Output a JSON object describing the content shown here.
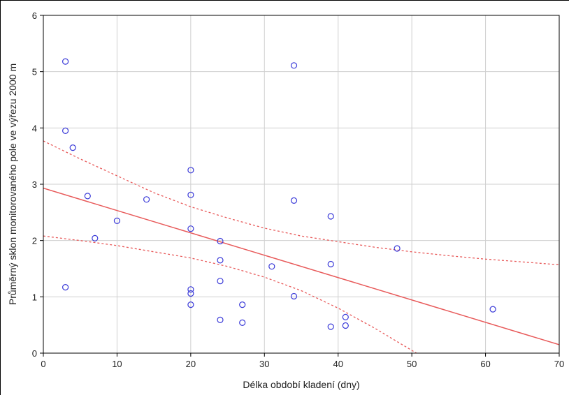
{
  "chart_data": {
    "type": "scatter",
    "title": "",
    "xlabel": "Délka období kladení (dny)",
    "ylabel": "Průměrný sklon monitorovaného pole ve výřezu 2000 m",
    "xlim": [
      0,
      70
    ],
    "ylim": [
      0,
      6
    ],
    "xticks": [
      "0",
      "10",
      "20",
      "30",
      "40",
      "50",
      "60",
      "70"
    ],
    "yticks": [
      "0",
      "1",
      "2",
      "3",
      "4",
      "5",
      "6"
    ],
    "grid": true,
    "colors": {
      "points": "#3a3ad8",
      "fit": "#e85a5a",
      "grid": "#cfcfcf"
    },
    "points": [
      {
        "x": 3,
        "y": 5.18
      },
      {
        "x": 3,
        "y": 3.95
      },
      {
        "x": 3,
        "y": 1.17
      },
      {
        "x": 4,
        "y": 3.65
      },
      {
        "x": 6,
        "y": 2.79
      },
      {
        "x": 7,
        "y": 2.04
      },
      {
        "x": 10,
        "y": 2.35
      },
      {
        "x": 14,
        "y": 2.73
      },
      {
        "x": 20,
        "y": 3.25
      },
      {
        "x": 20,
        "y": 2.81
      },
      {
        "x": 20,
        "y": 2.21
      },
      {
        "x": 20,
        "y": 1.13
      },
      {
        "x": 20,
        "y": 1.06
      },
      {
        "x": 20,
        "y": 0.86
      },
      {
        "x": 24,
        "y": 1.99
      },
      {
        "x": 24,
        "y": 1.65
      },
      {
        "x": 24,
        "y": 1.28
      },
      {
        "x": 24,
        "y": 0.59
      },
      {
        "x": 27,
        "y": 0.86
      },
      {
        "x": 27,
        "y": 0.54
      },
      {
        "x": 31,
        "y": 1.54
      },
      {
        "x": 34,
        "y": 5.11
      },
      {
        "x": 34,
        "y": 2.71
      },
      {
        "x": 34,
        "y": 1.01
      },
      {
        "x": 39,
        "y": 2.43
      },
      {
        "x": 39,
        "y": 1.58
      },
      {
        "x": 39,
        "y": 0.47
      },
      {
        "x": 41,
        "y": 0.64
      },
      {
        "x": 41,
        "y": 0.49
      },
      {
        "x": 48,
        "y": 1.86
      },
      {
        "x": 61,
        "y": 0.78
      }
    ],
    "fit_line": [
      {
        "x": 0,
        "y": 2.93
      },
      {
        "x": 70,
        "y": 0.15
      }
    ],
    "confidence_upper": [
      {
        "x": 0,
        "y": 3.77
      },
      {
        "x": 5,
        "y": 3.45
      },
      {
        "x": 10,
        "y": 3.15
      },
      {
        "x": 15,
        "y": 2.85
      },
      {
        "x": 20,
        "y": 2.6
      },
      {
        "x": 25,
        "y": 2.4
      },
      {
        "x": 30,
        "y": 2.22
      },
      {
        "x": 35,
        "y": 2.08
      },
      {
        "x": 40,
        "y": 1.98
      },
      {
        "x": 45,
        "y": 1.88
      },
      {
        "x": 50,
        "y": 1.8
      },
      {
        "x": 55,
        "y": 1.73
      },
      {
        "x": 60,
        "y": 1.67
      },
      {
        "x": 65,
        "y": 1.62
      },
      {
        "x": 70,
        "y": 1.57
      }
    ],
    "confidence_lower": [
      {
        "x": 0,
        "y": 2.08
      },
      {
        "x": 5,
        "y": 2.0
      },
      {
        "x": 10,
        "y": 1.91
      },
      {
        "x": 15,
        "y": 1.8
      },
      {
        "x": 20,
        "y": 1.69
      },
      {
        "x": 25,
        "y": 1.54
      },
      {
        "x": 30,
        "y": 1.35
      },
      {
        "x": 35,
        "y": 1.11
      },
      {
        "x": 40,
        "y": 0.8
      },
      {
        "x": 45,
        "y": 0.44
      },
      {
        "x": 50,
        "y": 0.05
      },
      {
        "x": 51,
        "y": -0.03
      }
    ]
  }
}
